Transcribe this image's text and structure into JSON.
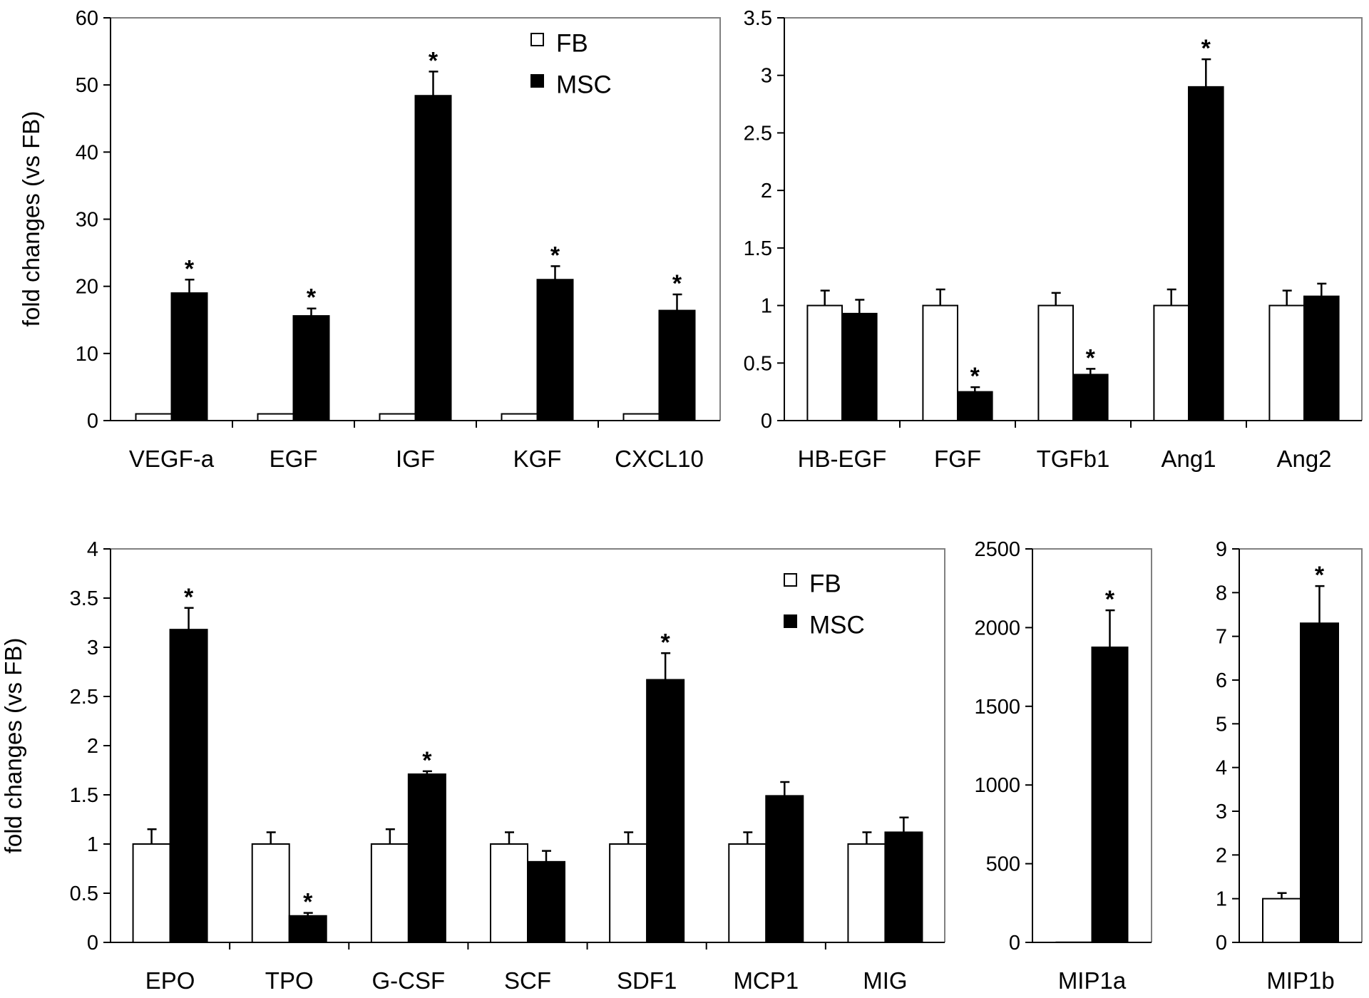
{
  "chart_data": [
    {
      "type": "bar",
      "title": "",
      "xlabel": "",
      "ylabel": "fold changes (vs FB)",
      "ylim": [
        0,
        60
      ],
      "yticks": [
        0,
        10,
        20,
        30,
        40,
        50,
        60
      ],
      "categories": [
        "VEGF-a",
        "EGF",
        "IGF",
        "KGF",
        "CXCL10"
      ],
      "series": [
        {
          "name": "FB",
          "values": [
            1,
            1,
            1,
            1,
            1
          ],
          "errors": [
            0,
            0,
            0,
            0,
            0
          ]
        },
        {
          "name": "MSC",
          "values": [
            19,
            15.6,
            48.4,
            21,
            16.4
          ],
          "errors": [
            2,
            1.1,
            3.6,
            2,
            2.4
          ]
        }
      ],
      "significant": [
        true,
        true,
        true,
        true,
        true
      ],
      "legend": {
        "position": "top-right",
        "labels": [
          "FB",
          "MSC"
        ]
      }
    },
    {
      "type": "bar",
      "title": "",
      "xlabel": "",
      "ylabel": "",
      "ylim": [
        0,
        3.5
      ],
      "yticks": [
        0,
        0.5,
        1,
        1.5,
        2,
        2.5,
        3,
        3.5
      ],
      "categories": [
        "HB-EGF",
        "FGF",
        "TGFb1",
        "Ang1",
        "Ang2"
      ],
      "series": [
        {
          "name": "FB",
          "values": [
            1,
            1,
            1,
            1,
            1
          ],
          "errors": [
            0.13,
            0.14,
            0.11,
            0.14,
            0.13
          ]
        },
        {
          "name": "MSC",
          "values": [
            0.93,
            0.25,
            0.4,
            2.9,
            1.08
          ],
          "errors": [
            0.12,
            0.04,
            0.05,
            0.24,
            0.11
          ]
        }
      ],
      "significant": [
        false,
        true,
        true,
        true,
        false
      ]
    },
    {
      "type": "bar",
      "title": "",
      "xlabel": "",
      "ylabel": "fold changes (vs FB)",
      "ylim": [
        0,
        4
      ],
      "yticks": [
        0,
        0.5,
        1,
        1.5,
        2,
        2.5,
        3,
        3.5,
        4
      ],
      "categories": [
        "EPO",
        "TPO",
        "G-CSF",
        "SCF",
        "SDF1",
        "MCP1",
        "MIG"
      ],
      "series": [
        {
          "name": "FB",
          "values": [
            1,
            1,
            1,
            1,
            1,
            1,
            1
          ],
          "errors": [
            0.15,
            0.12,
            0.15,
            0.12,
            0.12,
            0.12,
            0.12
          ]
        },
        {
          "name": "MSC",
          "values": [
            3.18,
            0.27,
            1.71,
            0.82,
            2.67,
            1.49,
            1.12
          ],
          "errors": [
            0.22,
            0.03,
            0.03,
            0.11,
            0.27,
            0.14,
            0.15
          ]
        }
      ],
      "significant": [
        true,
        true,
        true,
        false,
        true,
        false,
        false
      ],
      "legend": {
        "position": "top-right",
        "labels": [
          "FB",
          "MSC"
        ]
      }
    },
    {
      "type": "bar",
      "title": "",
      "xlabel": "",
      "ylabel": "",
      "ylim": [
        0,
        2500
      ],
      "yticks": [
        0,
        500,
        1000,
        1500,
        2000,
        2500
      ],
      "categories": [
        "MIP1a"
      ],
      "series": [
        {
          "name": "FB",
          "values": [
            1
          ],
          "errors": [
            0
          ]
        },
        {
          "name": "MSC",
          "values": [
            1875
          ],
          "errors": [
            235
          ]
        }
      ],
      "significant": [
        true
      ]
    },
    {
      "type": "bar",
      "title": "",
      "xlabel": "",
      "ylabel": "",
      "ylim": [
        0,
        9
      ],
      "yticks": [
        0,
        1,
        2,
        3,
        4,
        5,
        6,
        7,
        8,
        9
      ],
      "categories": [
        "MIP1b"
      ],
      "series": [
        {
          "name": "FB",
          "values": [
            1
          ],
          "errors": [
            0.13
          ]
        },
        {
          "name": "MSC",
          "values": [
            7.3
          ],
          "errors": [
            0.85
          ]
        }
      ],
      "significant": [
        true
      ]
    }
  ]
}
